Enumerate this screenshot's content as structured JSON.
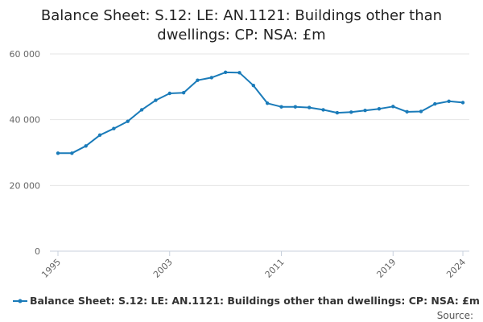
{
  "chart_data": {
    "type": "line",
    "title": "Balance Sheet: S.12: LE: AN.1121: Buildings other than dwellings: CP: NSA: £m",
    "xlabel": "",
    "ylabel": "",
    "x": [
      1995,
      1996,
      1997,
      1998,
      1999,
      2000,
      2001,
      2002,
      2003,
      2004,
      2005,
      2006,
      2007,
      2008,
      2009,
      2010,
      2011,
      2012,
      2013,
      2014,
      2015,
      2016,
      2017,
      2018,
      2019,
      2020,
      2021,
      2022,
      2023,
      2024
    ],
    "series": [
      {
        "name": "Balance Sheet: S.12: LE: AN.1121: Buildings other than dwellings: CP: NSA: £m",
        "values": [
          29800,
          29800,
          32000,
          35300,
          37300,
          39500,
          43000,
          45900,
          48000,
          48200,
          52000,
          52800,
          54400,
          54300,
          50400,
          45000,
          43900,
          43900,
          43700,
          43000,
          42100,
          42300,
          42800,
          43300,
          44000,
          42400,
          42500,
          44800,
          45600,
          45200
        ]
      }
    ],
    "x_ticks": [
      1995,
      2003,
      2011,
      2019,
      2024
    ],
    "x_tick_labels": [
      "1995",
      "2003",
      "2011",
      "2019",
      "2024"
    ],
    "y_ticks": [
      0,
      20000,
      40000,
      60000
    ],
    "y_tick_labels": [
      "0",
      "20 000",
      "40 000",
      "60 000"
    ],
    "xlim": [
      1995,
      2024
    ],
    "ylim": [
      0,
      60000
    ],
    "grid": "horizontal",
    "legend_position": "bottom",
    "line_color": "#1a7bb9"
  },
  "source_label": "Source:"
}
